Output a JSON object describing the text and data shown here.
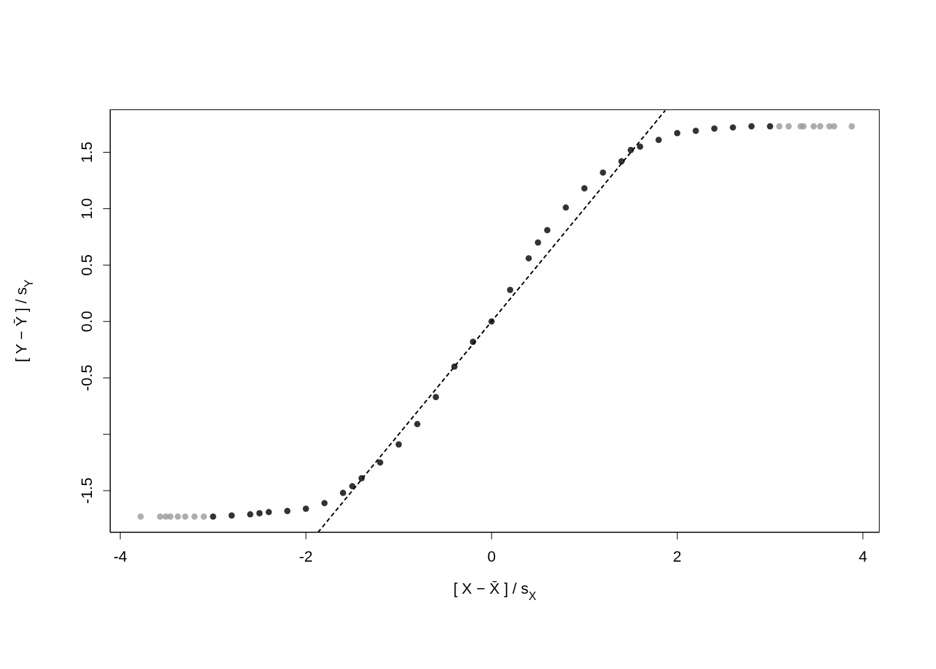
{
  "chart_data": {
    "type": "scatter",
    "xlabel": "[ X − X̄ ] / s$_{X}$",
    "ylabel": "[ Y − Ȳ ] / s$_{Y}$",
    "xlim": [
      -4.11,
      4.18
    ],
    "ylim": [
      -1.87,
      1.88
    ],
    "xticks": [
      -4,
      -2,
      0,
      2,
      4
    ],
    "yticks": [
      {
        "value": -1.5,
        "label": "-1.5"
      },
      {
        "value": -1,
        "label": null
      },
      {
        "value": -0.5,
        "label": "-0.5"
      },
      {
        "value": 0,
        "label": "0.0"
      },
      {
        "value": 0.5,
        "label": "0.5"
      },
      {
        "value": 1,
        "label": "1.0"
      },
      {
        "value": 1.5,
        "label": "1.5"
      }
    ],
    "grid": false,
    "legend": false,
    "series": [
      {
        "color": "#000000",
        "marker": "circle",
        "x": [
          -3.0,
          -2.8,
          -2.6,
          -2.5,
          -2.4,
          -2.2,
          -2.0,
          -1.8,
          -1.6,
          -1.5,
          -1.4,
          -1.2,
          -1.0,
          -0.8,
          -0.6,
          -0.4,
          -0.2,
          0.0,
          0.2,
          0.4,
          0.5,
          0.6,
          0.8,
          1.0,
          1.2,
          1.4,
          1.5,
          1.6,
          1.8,
          2.0,
          2.2,
          2.4,
          2.6,
          2.8,
          3.0
        ],
        "values": [
          -1.73,
          -1.72,
          -1.71,
          -1.7,
          -1.69,
          -1.68,
          -1.66,
          -1.61,
          -1.52,
          -1.46,
          -1.39,
          -1.25,
          -1.09,
          -0.91,
          -0.67,
          -0.4,
          -0.18,
          0.0,
          0.28,
          0.56,
          0.7,
          0.81,
          1.01,
          1.18,
          1.32,
          1.42,
          1.52,
          1.55,
          1.61,
          1.67,
          1.69,
          1.71,
          1.72,
          1.73,
          1.73
        ]
      },
      {
        "color": "#999999",
        "marker": "circle",
        "x": [
          -3.78,
          -3.57,
          -3.51,
          -3.46,
          -3.38,
          -3.3,
          -3.2,
          -3.1,
          3.1,
          3.2,
          3.33,
          3.36,
          3.47,
          3.54,
          3.64,
          3.69,
          3.88
        ],
        "values": [
          -1.73,
          -1.73,
          -1.73,
          -1.73,
          -1.73,
          -1.73,
          -1.73,
          -1.73,
          1.73,
          1.73,
          1.73,
          1.73,
          1.73,
          1.73,
          1.73,
          1.73,
          1.73
        ]
      },
      {
        "type": "line",
        "color": "#000000",
        "line_style": "dashed",
        "marker": "none",
        "x": [
          -1.87,
          1.87
        ],
        "values": [
          -1.87,
          1.87
        ]
      }
    ]
  }
}
